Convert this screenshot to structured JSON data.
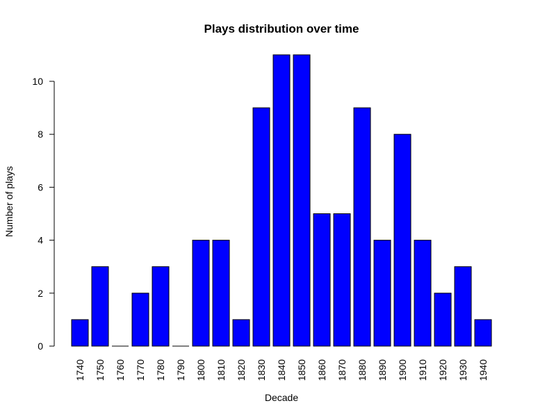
{
  "chart_data": {
    "type": "bar",
    "title": "Plays distribution over time",
    "xlabel": "Decade",
    "ylabel": "Number of plays",
    "categories": [
      "1740",
      "1750",
      "1760",
      "1770",
      "1780",
      "1790",
      "1800",
      "1810",
      "1820",
      "1830",
      "1840",
      "1850",
      "1860",
      "1870",
      "1880",
      "1890",
      "1900",
      "1910",
      "1920",
      "1930",
      "1940"
    ],
    "values": [
      1,
      3,
      0,
      2,
      3,
      0,
      4,
      4,
      1,
      9,
      11,
      11,
      5,
      5,
      9,
      4,
      8,
      4,
      2,
      3,
      1
    ],
    "ylim": [
      0,
      11
    ],
    "yticks": [
      0,
      2,
      4,
      6,
      8,
      10
    ],
    "bar_color": "#0000FF",
    "bar_stroke": "#000000",
    "grid": false,
    "x_tick_rotation": "vertical"
  }
}
